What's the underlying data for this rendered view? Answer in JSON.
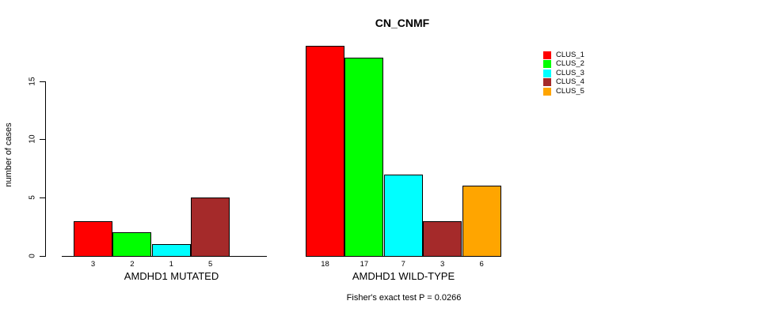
{
  "chart_data": {
    "type": "bar",
    "title": "CN_CNMF",
    "ylabel": "number of cases",
    "ylim": [
      0,
      15
    ],
    "yticks": [
      0,
      5,
      10,
      15
    ],
    "grid": false,
    "legend_position": "right",
    "clusters": [
      {
        "name": "CLUS_1",
        "color": "#FF0000"
      },
      {
        "name": "CLUS_2",
        "color": "#00FF00"
      },
      {
        "name": "CLUS_3",
        "color": "#00FFFF"
      },
      {
        "name": "CLUS_4",
        "color": "#A52A2A"
      },
      {
        "name": "CLUS_5",
        "color": "#FFA500"
      }
    ],
    "groups": [
      {
        "label": "AMDHD1 MUTATED",
        "values": [
          3,
          2,
          1,
          5,
          0
        ]
      },
      {
        "label": "AMDHD1 WILD-TYPE",
        "values": [
          18,
          17,
          7,
          3,
          6
        ]
      }
    ],
    "bar_value_labels": true,
    "footnote": "Fisher's exact test P = 0.0266"
  }
}
